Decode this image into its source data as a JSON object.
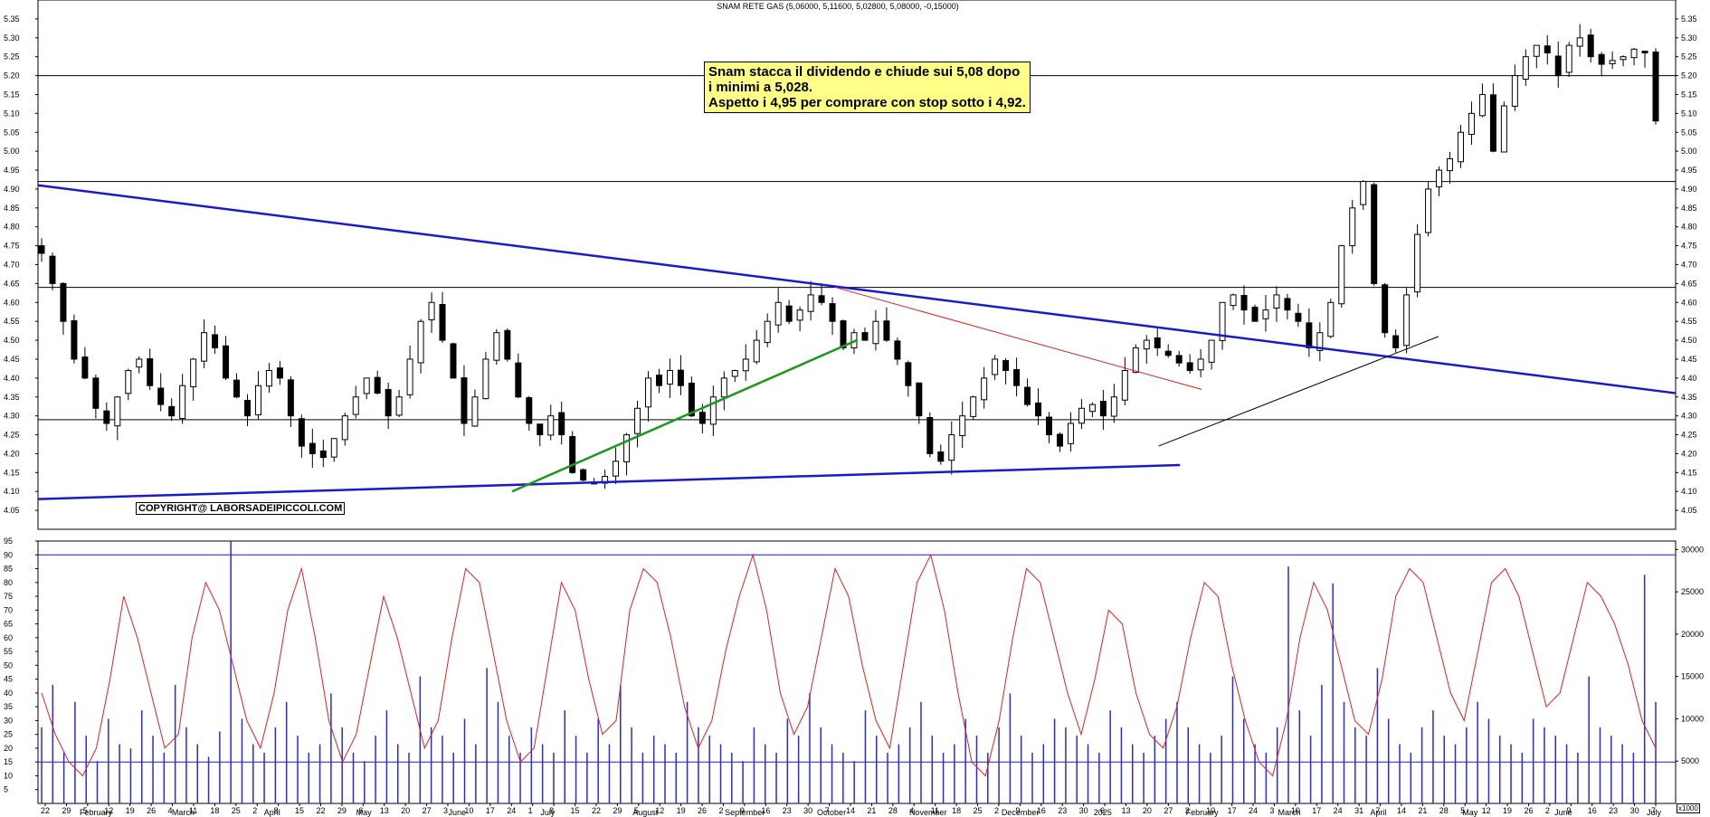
{
  "title": "SNAM RETE GAS (5,06000, 5,11600, 5,02800, 5,08000, -0,15000)",
  "annotation": {
    "lines": [
      "Snam stacca il dividendo e chiude sui 5,08 dopo",
      "i minimi a 5,028.",
      "Aspetto i 4,95 per comprare con stop sotto i 4,92."
    ]
  },
  "copyright": "COPYRIGHT@ LABORSADEIPICCOLI.COM",
  "volume_unit": "x1000",
  "colors": {
    "candle": "#000000",
    "blue_trendline": "#1a1acc",
    "red_trendline": "#e02020",
    "green_trendline": "#1a9a1a",
    "oscillator": "#e02020",
    "volume_bars": "#2b2bd6",
    "annotation_bg": "#ffff88"
  },
  "chart_data": [
    {
      "type": "candlestick",
      "name": "price",
      "ylim": [
        4.0,
        5.4
      ],
      "y_ticks": [
        "4.05",
        "4.10",
        "4.15",
        "4.20",
        "4.25",
        "4.30",
        "4.35",
        "4.40",
        "4.45",
        "4.50",
        "4.55",
        "4.60",
        "4.65",
        "4.70",
        "4.75",
        "4.80",
        "4.85",
        "4.90",
        "4.95",
        "5.00",
        "5.05",
        "5.10",
        "5.15",
        "5.20",
        "5.25",
        "5.30",
        "5.35"
      ],
      "horizontal_levels": [
        5.2,
        4.92,
        4.64,
        4.29
      ],
      "close_path": [
        4.73,
        4.65,
        4.55,
        4.45,
        4.4,
        4.32,
        4.28,
        4.35,
        4.42,
        4.45,
        4.38,
        4.33,
        4.3,
        4.38,
        4.45,
        4.52,
        4.48,
        4.4,
        4.35,
        4.3,
        4.38,
        4.42,
        4.4,
        4.3,
        4.22,
        4.2,
        4.19,
        4.24,
        4.3,
        4.35,
        4.4,
        4.36,
        4.3,
        4.35,
        4.45,
        4.55,
        4.6,
        4.5,
        4.4,
        4.28,
        4.35,
        4.45,
        4.52,
        4.45,
        4.35,
        4.28,
        4.25,
        4.3,
        4.25,
        4.15,
        4.13,
        4.12,
        4.14,
        4.18,
        4.25,
        4.32,
        4.4,
        4.38,
        4.42,
        4.38,
        4.3,
        4.28,
        4.35,
        4.4,
        4.42,
        4.45,
        4.5,
        4.55,
        4.6,
        4.55,
        4.58,
        4.62,
        4.6,
        4.55,
        4.48,
        4.52,
        4.5,
        4.55,
        4.5,
        4.45,
        4.38,
        4.3,
        4.2,
        4.18,
        4.25,
        4.3,
        4.35,
        4.4,
        4.45,
        4.42,
        4.38,
        4.33,
        4.3,
        4.25,
        4.22,
        4.28,
        4.32,
        4.33,
        4.3,
        4.35,
        4.42,
        4.48,
        4.5,
        4.48,
        4.46,
        4.44,
        4.42,
        4.45,
        4.5,
        4.6,
        4.62,
        4.58,
        4.55,
        4.58,
        4.62,
        4.58,
        4.55,
        4.48,
        4.52,
        4.6,
        4.75,
        4.85,
        4.92,
        4.65,
        4.52,
        4.48,
        4.62,
        4.78,
        4.9,
        4.95,
        4.98,
        5.05,
        5.1,
        5.15,
        5.0,
        5.12,
        5.2,
        5.25,
        5.28,
        5.26,
        5.2,
        5.28,
        5.3,
        5.25,
        5.23,
        5.24,
        5.25,
        5.27,
        5.26,
        5.08
      ],
      "trendlines": [
        {
          "color": "blue",
          "from": [
            "2024-01-22",
            4.91
          ],
          "to": [
            "2025-07-07",
            4.36
          ]
        },
        {
          "color": "blue",
          "from": [
            "2024-01-22",
            4.08
          ],
          "to": [
            "2025-01-27",
            4.17
          ]
        },
        {
          "color": "black",
          "from": [
            "2025-01-20",
            4.22
          ],
          "to": [
            "2025-04-21",
            4.51
          ]
        },
        {
          "color": "red",
          "from": [
            "2024-10-07",
            4.64
          ],
          "to": [
            "2025-02-03",
            4.37
          ]
        },
        {
          "color": "green",
          "from": [
            "2024-06-24",
            4.1
          ],
          "to": [
            "2024-10-14",
            4.5
          ]
        }
      ]
    },
    {
      "type": "line",
      "name": "oscillator",
      "ylim": [
        0,
        95
      ],
      "y_ticks": [
        "5",
        "10",
        "15",
        "20",
        "25",
        "30",
        "35",
        "40",
        "45",
        "50",
        "55",
        "60",
        "65",
        "70",
        "75",
        "80",
        "85",
        "90",
        "95"
      ],
      "values": [
        40,
        25,
        15,
        10,
        20,
        45,
        75,
        60,
        40,
        20,
        25,
        60,
        80,
        70,
        50,
        30,
        20,
        40,
        70,
        85,
        60,
        30,
        15,
        25,
        50,
        75,
        60,
        40,
        20,
        30,
        60,
        85,
        80,
        55,
        30,
        15,
        20,
        50,
        80,
        70,
        45,
        25,
        30,
        70,
        85,
        80,
        60,
        35,
        20,
        30,
        55,
        75,
        90,
        70,
        40,
        25,
        35,
        60,
        85,
        75,
        50,
        30,
        20,
        50,
        80,
        90,
        70,
        40,
        15,
        10,
        30,
        60,
        85,
        80,
        60,
        40,
        25,
        45,
        70,
        65,
        40,
        25,
        20,
        35,
        60,
        80,
        75,
        50,
        30,
        15,
        10,
        30,
        60,
        80,
        70,
        50,
        30,
        25,
        45,
        75,
        85,
        80,
        60,
        40,
        30,
        55,
        80,
        85,
        75,
        55,
        35,
        40,
        60,
        80,
        75,
        65,
        50,
        30,
        20
      ]
    },
    {
      "type": "bar",
      "name": "volume",
      "ylim": [
        0,
        31000
      ],
      "y_ticks": [
        "5000",
        "10000",
        "15000",
        "20000",
        "25000",
        "30000"
      ],
      "values": [
        9000,
        14000,
        6000,
        12000,
        8000,
        5000,
        10000,
        7000,
        6500,
        11000,
        8000,
        6000,
        14000,
        9000,
        7000,
        5500,
        8500,
        31000,
        10000,
        7000,
        6000,
        9000,
        12000,
        8000,
        6000,
        7000,
        13000,
        9000,
        6000,
        5000,
        8000,
        11000,
        7000,
        6000,
        15000,
        9000,
        8000,
        6000,
        10000,
        7000,
        16000,
        12000,
        8000,
        6000,
        9000,
        7000,
        6000,
        11000,
        8000,
        6000,
        10000,
        7000,
        14000,
        9000,
        6000,
        8000,
        7000,
        6000,
        12000,
        9000,
        8000,
        7000,
        6000,
        5000,
        9000,
        7000,
        6000,
        10000,
        8000,
        13000,
        9000,
        7000,
        6000,
        5000,
        11000,
        8000,
        6000,
        7000,
        9000,
        12000,
        8000,
        6000,
        7000,
        10000,
        8000,
        6000,
        9000,
        13000,
        8000,
        6000,
        7000,
        10000,
        9000,
        8000,
        7000,
        6000,
        11000,
        9000,
        7000,
        6000,
        8000,
        10000,
        12000,
        9000,
        7000,
        6000,
        8000,
        15000,
        10000,
        7000,
        6000,
        9000,
        28000,
        11000,
        8000,
        14000,
        26000,
        12000,
        9000,
        8000,
        16000,
        10000,
        7000,
        6000,
        9000,
        11000,
        8000,
        7000,
        9000,
        12000,
        10000,
        8000,
        7000,
        6000,
        10000,
        9000,
        8000,
        7000,
        6000,
        15000,
        9000,
        8000,
        7000,
        6000,
        27000,
        12000
      ]
    }
  ],
  "x_axis": {
    "day_ticks": [
      "22",
      "29",
      "5",
      "12",
      "19",
      "26",
      "4",
      "11",
      "18",
      "25",
      "2",
      "8",
      "15",
      "22",
      "29",
      "6",
      "13",
      "20",
      "27",
      "3",
      "10",
      "17",
      "24",
      "1",
      "8",
      "15",
      "22",
      "29",
      "5",
      "12",
      "19",
      "26",
      "2",
      "9",
      "16",
      "23",
      "30",
      "7",
      "14",
      "21",
      "28",
      "4",
      "11",
      "18",
      "25",
      "2",
      "9",
      "16",
      "23",
      "30",
      "6",
      "13",
      "20",
      "27",
      "3",
      "10",
      "17",
      "24",
      "3",
      "10",
      "17",
      "24",
      "31",
      "7",
      "14",
      "21",
      "28",
      "5",
      "12",
      "19",
      "26",
      "2",
      "9",
      "16",
      "23",
      "30",
      "7"
    ],
    "month_labels": [
      "February",
      "March",
      "April",
      "May",
      "June",
      "July",
      "August",
      "September",
      "October",
      "November",
      "December",
      "2025",
      "February",
      "March",
      "April",
      "May",
      "June",
      "July"
    ]
  }
}
